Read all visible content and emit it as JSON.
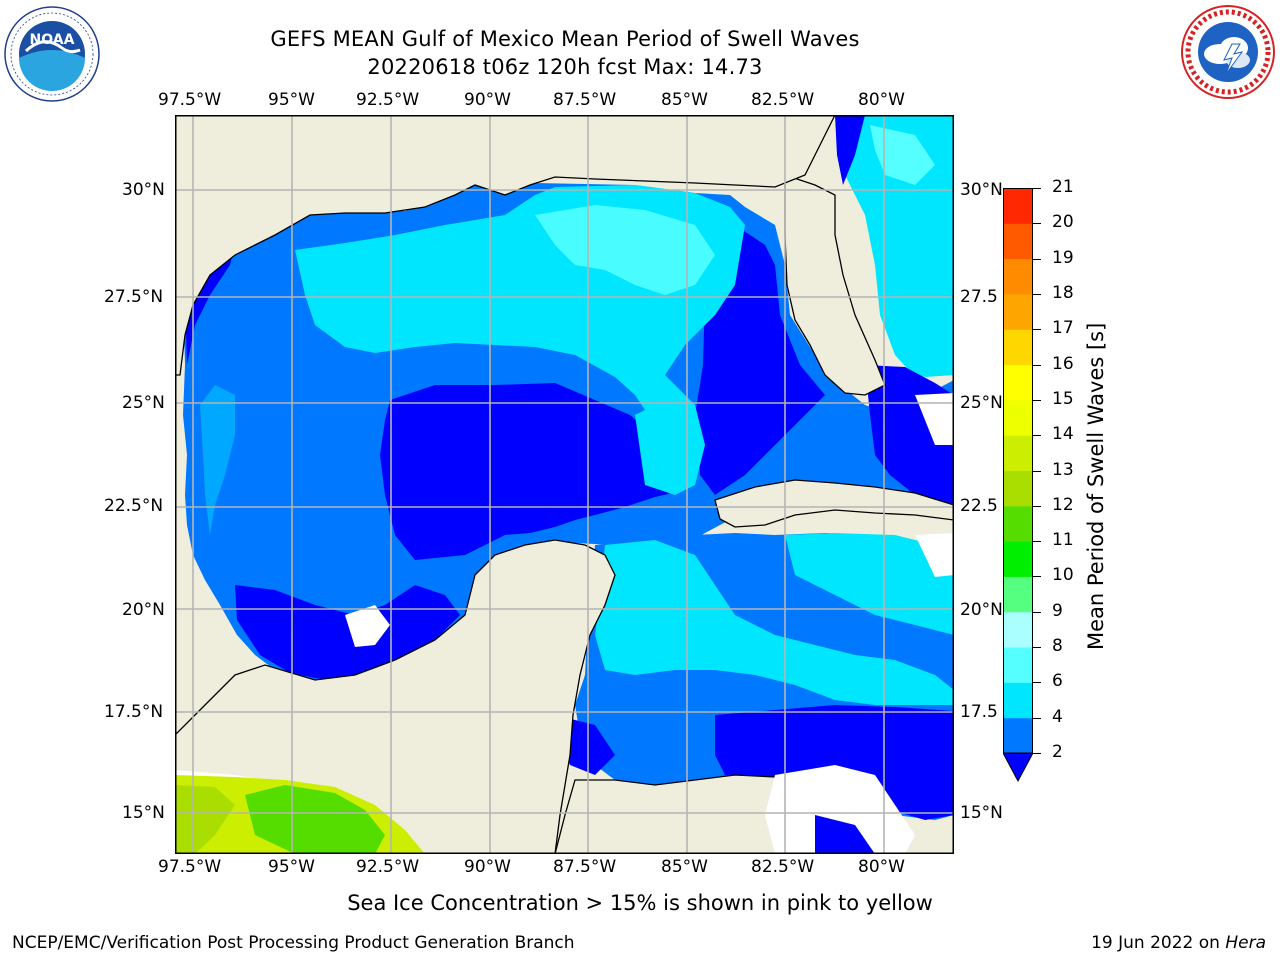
{
  "title": {
    "line1": "GEFS MEAN Gulf of Mexico Mean Period of Swell Waves",
    "line2": "20220618 t06z 120h fcst   Max: 14.73"
  },
  "logos": {
    "left": {
      "name": "NOAA",
      "ring_text": "NATIONAL OCEANIC AND ATMOSPHERIC ADMINISTRATION · U.S. DEPARTMENT OF COMMERCE",
      "colors": {
        "ring": "#1f3f8f",
        "top": "#1a4fa3",
        "bottom": "#2aa5e0"
      }
    },
    "right": {
      "name": "NATIONAL WEATHER SERVICE",
      "colors": {
        "ring": "#d62222",
        "inner": "#1e63c4",
        "cloud": "#ffffff"
      }
    }
  },
  "map": {
    "lon_ticks": [
      "97.5°W",
      "95°W",
      "92.5°W",
      "90°W",
      "87.5°W",
      "85°W",
      "82.5°W",
      "80°W"
    ],
    "lat_ticks_left": [
      "30°N",
      "27.5°N",
      "25°N",
      "22.5°N",
      "20°N",
      "17.5°N",
      "15°N"
    ],
    "lat_ticks_right": [
      "30°N",
      "27.5",
      "25°N",
      "22.5",
      "20°N",
      "17.5",
      "15°N"
    ],
    "land_color": "#efeedd",
    "grid_color": "#b4b4b4"
  },
  "colorbar": {
    "label": "Mean Period of Swell Waves [s]",
    "levels": [
      "2",
      "4",
      "6",
      "8",
      "9",
      "10",
      "11",
      "12",
      "13",
      "14",
      "15",
      "16",
      "17",
      "18",
      "19",
      "20",
      "21"
    ],
    "colors": [
      "#0000ff",
      "#0078ff",
      "#00e6ff",
      "#55ffff",
      "#aaffff",
      "#55ff80",
      "#00ee00",
      "#55dd00",
      "#aadd00",
      "#ccee00",
      "#eeff00",
      "#ffff00",
      "#ffd700",
      "#ffa500",
      "#ff8c00",
      "#ff5a00",
      "#ff2800",
      "#ff0000"
    ]
  },
  "note": "Sea Ice Concentration > 15% is shown in pink to yellow",
  "footer": {
    "left": "NCEP/EMC/Verification Post Processing Product Generation Branch",
    "right_date": "19 Jun 2022 on ",
    "right_host": "Hera"
  }
}
